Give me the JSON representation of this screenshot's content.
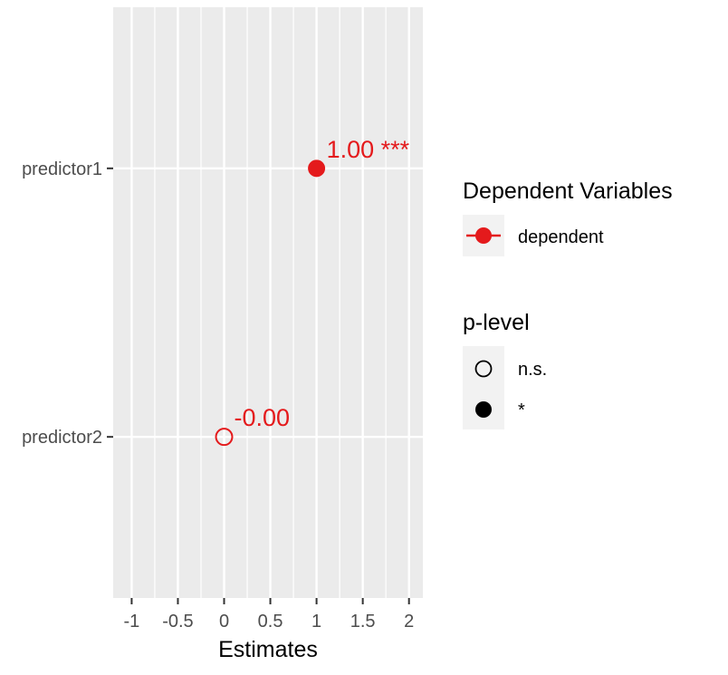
{
  "chart_data": {
    "type": "scatter",
    "title": "",
    "xlabel": "Estimates",
    "ylabel": "",
    "xlim": [
      -1.2,
      2.15
    ],
    "x_ticks": [
      -1,
      -0.5,
      0,
      0.5,
      1,
      1.5,
      2
    ],
    "x_tick_labels": [
      "-1",
      "-0.5",
      "0",
      "0.5",
      "1",
      "1.5",
      "2"
    ],
    "categories": [
      "predictor1",
      "predictor2"
    ],
    "grid": true,
    "legend_placement": "right",
    "series": [
      {
        "name": "dependent",
        "color": "#E41A1C",
        "points": [
          {
            "category": "predictor1",
            "x": 1.0,
            "label": "1.00 ***",
            "p_level": "*"
          },
          {
            "category": "predictor2",
            "x": 0.0,
            "label": "-0.00",
            "p_level": "n.s."
          }
        ]
      }
    ],
    "legends": [
      {
        "title": "Dependent Variables",
        "items": [
          {
            "label": "dependent",
            "color": "#E41A1C",
            "marker": "filled-circle-with-line"
          }
        ]
      },
      {
        "title": "p-level",
        "items": [
          {
            "label": "n.s.",
            "marker": "open-circle"
          },
          {
            "label": "*",
            "marker": "filled-circle"
          }
        ]
      }
    ]
  }
}
